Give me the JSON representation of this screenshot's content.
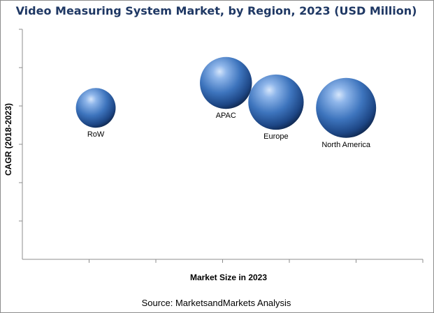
{
  "chart_data": {
    "type": "bubble",
    "title": "Video Measuring System Market, by Region, 2023 (USD Million)",
    "xlabel": "Market Size in 2023",
    "ylabel": "CAGR (2018-2023)",
    "grid": false,
    "legend": "none",
    "series": [
      {
        "name": "RoW",
        "x": 1.1,
        "y": 3.95,
        "size": 0.35
      },
      {
        "name": "APAC",
        "x": 3.05,
        "y": 4.6,
        "size": 0.6
      },
      {
        "name": "Europe",
        "x": 3.8,
        "y": 4.1,
        "size": 0.68
      },
      {
        "name": "North America",
        "x": 4.85,
        "y": 3.95,
        "size": 0.8
      }
    ],
    "xlim": [
      0,
      6
    ],
    "ylim": [
      0,
      6
    ],
    "colors": {
      "bubble_light": "#a9c8ee",
      "bubble_mid": "#4a82c9",
      "bubble_dark": "#14325e",
      "title": "#1f3864"
    }
  },
  "source": "Source: MarketsandMarkets Analysis"
}
